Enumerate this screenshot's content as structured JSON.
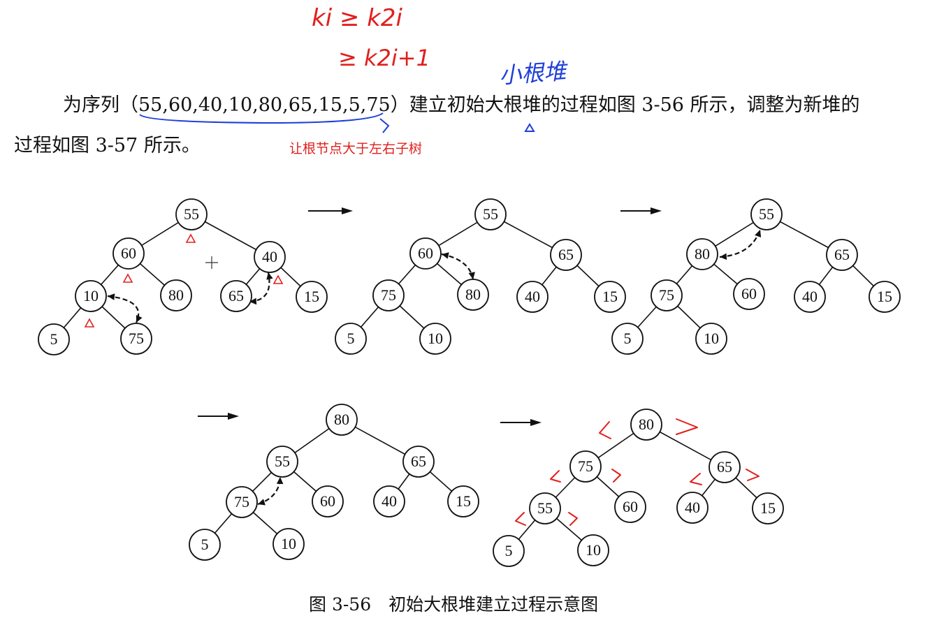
{
  "handwritten": {
    "inequality_line1": "ki ≥ k2i",
    "inequality_line2": "≥ k2i+1",
    "blue_note": "小根堆",
    "red_note": "让根节点大于左右子树"
  },
  "paragraph": {
    "line1": "为序列（55,60,40,10,80,65,15,5,75）建立初始大根堆的过程如图 3-56 所示，调整为新堆的",
    "line2": "过程如图 3-57 所示。"
  },
  "caption": "图 3-56　初始大根堆建立过程示意图",
  "colors": {
    "ink": "#111111",
    "red_annotation": "#e0201e",
    "blue_annotation": "#1e3fd8"
  },
  "trees": [
    {
      "name": "step-1",
      "nodes": [
        "55",
        "60",
        "40",
        "10",
        "80",
        "65",
        "15",
        "5",
        "75"
      ]
    },
    {
      "name": "step-2",
      "nodes": [
        "55",
        "60",
        "65",
        "75",
        "80",
        "40",
        "15",
        "5",
        "10"
      ]
    },
    {
      "name": "step-3",
      "nodes": [
        "55",
        "80",
        "65",
        "75",
        "60",
        "40",
        "15",
        "5",
        "10"
      ]
    },
    {
      "name": "step-4",
      "nodes": [
        "80",
        "55",
        "65",
        "75",
        "60",
        "40",
        "15",
        "5",
        "10"
      ]
    },
    {
      "name": "step-5",
      "nodes": [
        "80",
        "75",
        "65",
        "55",
        "60",
        "40",
        "15",
        "5",
        "10"
      ]
    }
  ]
}
